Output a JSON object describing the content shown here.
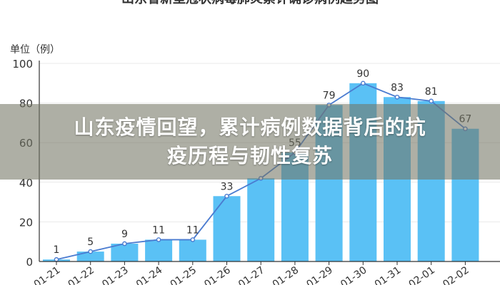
{
  "headline": {
    "line1": "山东疫情回望，累计病例数据背后的抗",
    "line2": "疫历程与韧性复苏"
  },
  "colors": {
    "bar": "#5ac1f5",
    "line": "#4a7bd0",
    "axis": "#333333",
    "grid": "#eaeaea",
    "banner": "#737664"
  },
  "chart_data": {
    "type": "bar",
    "title": "山东省新型冠状病毒肺炎累计确诊病例趋势图",
    "unit_label": "单位（例）",
    "categories": [
      "01-21",
      "01-22",
      "01-23",
      "01-24",
      "01-25",
      "01-26",
      "01-27",
      "01-28",
      "01-29",
      "01-30",
      "01-31",
      "02-01",
      "02-02"
    ],
    "category_labels": [
      "01-21",
      "01-22",
      "01-23",
      "01-24",
      "01-25",
      "01-26",
      "01-27",
      "01-28",
      "01-29",
      "01-30",
      "01-31",
      "02-01",
      "02-02"
    ],
    "values": [
      1,
      5,
      9,
      11,
      11,
      33,
      42,
      55,
      79,
      90,
      83,
      81,
      67
    ],
    "data_labels": [
      "1",
      "5",
      "9",
      "11",
      "11",
      "33",
      "",
      "55",
      "79",
      "90",
      "83",
      "81",
      "67"
    ],
    "line_values": [
      1,
      5,
      9,
      11,
      11,
      33,
      42,
      55,
      79,
      90,
      83,
      81,
      67
    ],
    "yticks": [
      0,
      20,
      40,
      60,
      80,
      100
    ],
    "ylim": [
      0,
      100
    ],
    "grid": true,
    "legend": "none"
  }
}
